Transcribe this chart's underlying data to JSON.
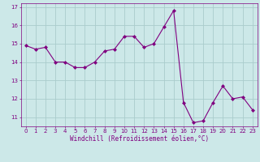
{
  "x": [
    0,
    1,
    2,
    3,
    4,
    5,
    6,
    7,
    8,
    9,
    10,
    11,
    12,
    13,
    14,
    15,
    16,
    17,
    18,
    19,
    20,
    21,
    22,
    23
  ],
  "y": [
    14.9,
    14.7,
    14.8,
    14.0,
    14.0,
    13.7,
    13.7,
    14.0,
    14.6,
    14.7,
    15.4,
    15.4,
    14.8,
    15.0,
    15.9,
    16.8,
    11.8,
    10.7,
    10.8,
    11.8,
    12.7,
    12.0,
    12.1,
    11.4
  ],
  "line_color": "#800080",
  "marker": "D",
  "marker_size": 2.0,
  "bg_color": "#cce8e8",
  "grid_color": "#aacccc",
  "xlabel": "Windchill (Refroidissement éolien,°C)",
  "xlabel_color": "#800080",
  "tick_color": "#800080",
  "ylim_min": 10.5,
  "ylim_max": 17.2,
  "xlim_min": -0.5,
  "xlim_max": 23.5,
  "yticks": [
    11,
    12,
    13,
    14,
    15,
    16,
    17
  ],
  "xticks": [
    0,
    1,
    2,
    3,
    4,
    5,
    6,
    7,
    8,
    9,
    10,
    11,
    12,
    13,
    14,
    15,
    16,
    17,
    18,
    19,
    20,
    21,
    22,
    23
  ],
  "tick_fontsize": 5.0,
  "xlabel_fontsize": 5.5,
  "linewidth": 0.8
}
